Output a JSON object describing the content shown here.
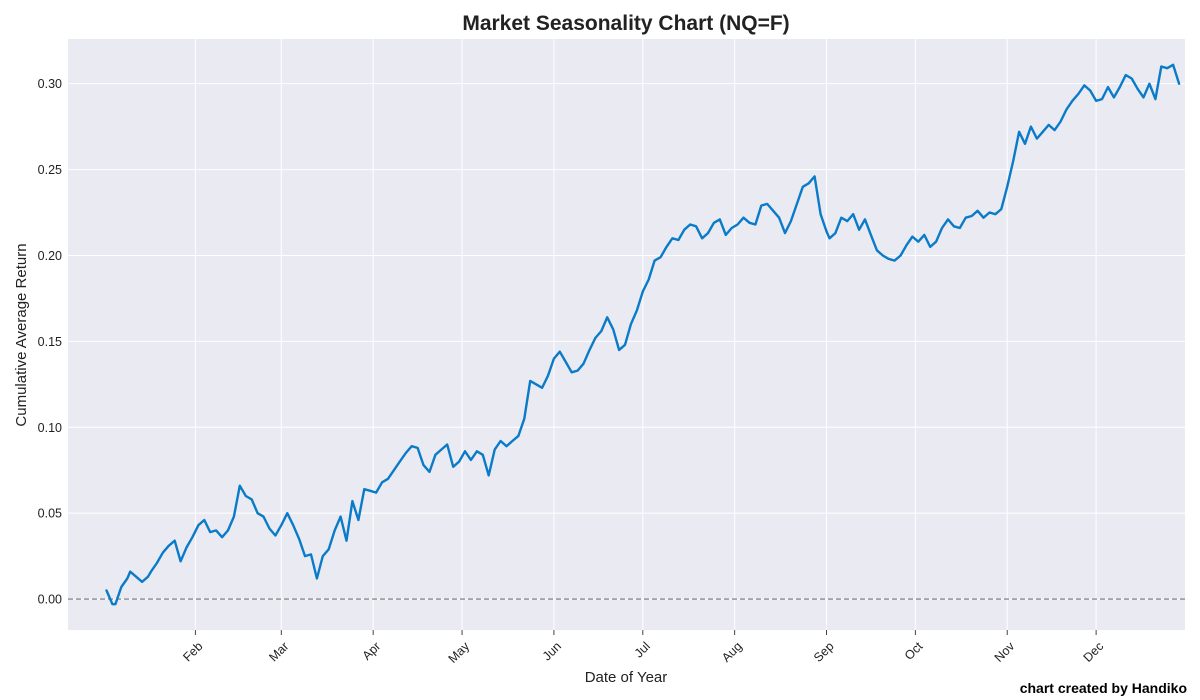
{
  "chart_data": {
    "type": "line",
    "title": "Market Seasonality Chart (NQ=F)",
    "xlabel": "Date of Year",
    "ylabel": "Cumulative Average Return",
    "credit": "chart created by Handiko",
    "ylim": [
      -0.018,
      0.326
    ],
    "yticks": [
      0.0,
      0.05,
      0.1,
      0.15,
      0.2,
      0.25,
      0.3
    ],
    "ytick_labels": [
      "0.00",
      "0.05",
      "0.10",
      "0.15",
      "0.20",
      "0.25",
      "0.30"
    ],
    "xlim": [
      "2023-12-20",
      "2024-12-31"
    ],
    "xticks": [
      "2024-02-01",
      "2024-03-01",
      "2024-04-01",
      "2024-05-01",
      "2024-06-01",
      "2024-07-01",
      "2024-08-01",
      "2024-09-01",
      "2024-10-01",
      "2024-11-01",
      "2024-12-01"
    ],
    "xtick_labels": [
      "Feb",
      "Mar",
      "Apr",
      "May",
      "Jun",
      "Jul",
      "Aug",
      "Sep",
      "Oct",
      "Nov",
      "Dec"
    ],
    "grid": true,
    "reference_line": {
      "y": 0.0,
      "style": "dashed",
      "color": "#777777"
    },
    "colors": {
      "line": "#0a7bc8",
      "plot_bg": "#eaeaf2",
      "grid": "#ffffff"
    },
    "series": [
      {
        "x": [
          "2024-01-02",
          "2024-01-03",
          "2024-01-04",
          "2024-01-05",
          "2024-01-07",
          "2024-01-09",
          "2024-01-10",
          "2024-01-12",
          "2024-01-14",
          "2024-01-16",
          "2024-01-17",
          "2024-01-19",
          "2024-01-21",
          "2024-01-23",
          "2024-01-25",
          "2024-01-27",
          "2024-01-29",
          "2024-01-31",
          "2024-02-02",
          "2024-02-04",
          "2024-02-06",
          "2024-02-08",
          "2024-02-10",
          "2024-02-12",
          "2024-02-14",
          "2024-02-16",
          "2024-02-18",
          "2024-02-20",
          "2024-02-22",
          "2024-02-24",
          "2024-02-26",
          "2024-02-28",
          "2024-03-01",
          "2024-03-03",
          "2024-03-05",
          "2024-03-07",
          "2024-03-09",
          "2024-03-11",
          "2024-03-13",
          "2024-03-15",
          "2024-03-17",
          "2024-03-19",
          "2024-03-21",
          "2024-03-23",
          "2024-03-25",
          "2024-03-27",
          "2024-03-29",
          "2024-03-31",
          "2024-04-02",
          "2024-04-04",
          "2024-04-06",
          "2024-04-08",
          "2024-04-10",
          "2024-04-12",
          "2024-04-14",
          "2024-04-16",
          "2024-04-18",
          "2024-04-20",
          "2024-04-22",
          "2024-04-24",
          "2024-04-26",
          "2024-04-28",
          "2024-04-30",
          "2024-05-02",
          "2024-05-04",
          "2024-05-06",
          "2024-05-08",
          "2024-05-10",
          "2024-05-12",
          "2024-05-14",
          "2024-05-16",
          "2024-05-18",
          "2024-05-20",
          "2024-05-22",
          "2024-05-24",
          "2024-05-26",
          "2024-05-28",
          "2024-05-30",
          "2024-06-01",
          "2024-06-03",
          "2024-06-05",
          "2024-06-07",
          "2024-06-09",
          "2024-06-11",
          "2024-06-13",
          "2024-06-15",
          "2024-06-17",
          "2024-06-19",
          "2024-06-21",
          "2024-06-23",
          "2024-06-25",
          "2024-06-27",
          "2024-06-29",
          "2024-07-01",
          "2024-07-03",
          "2024-07-05",
          "2024-07-07",
          "2024-07-09",
          "2024-07-11",
          "2024-07-13",
          "2024-07-15",
          "2024-07-17",
          "2024-07-19",
          "2024-07-21",
          "2024-07-23",
          "2024-07-25",
          "2024-07-27",
          "2024-07-29",
          "2024-07-31",
          "2024-08-02",
          "2024-08-04",
          "2024-08-06",
          "2024-08-08",
          "2024-08-10",
          "2024-08-12",
          "2024-08-14",
          "2024-08-16",
          "2024-08-18",
          "2024-08-20",
          "2024-08-22",
          "2024-08-24",
          "2024-08-26",
          "2024-08-28",
          "2024-08-30",
          "2024-09-01",
          "2024-09-02",
          "2024-09-04",
          "2024-09-06",
          "2024-09-08",
          "2024-09-10",
          "2024-09-12",
          "2024-09-14",
          "2024-09-16",
          "2024-09-18",
          "2024-09-20",
          "2024-09-22",
          "2024-09-24",
          "2024-09-26",
          "2024-09-28",
          "2024-09-30",
          "2024-10-02",
          "2024-10-04",
          "2024-10-06",
          "2024-10-08",
          "2024-10-10",
          "2024-10-12",
          "2024-10-14",
          "2024-10-16",
          "2024-10-18",
          "2024-10-20",
          "2024-10-22",
          "2024-10-24",
          "2024-10-26",
          "2024-10-28",
          "2024-10-30",
          "2024-11-01",
          "2024-11-03",
          "2024-11-05",
          "2024-11-07",
          "2024-11-09",
          "2024-11-11",
          "2024-11-13",
          "2024-11-15",
          "2024-11-17",
          "2024-11-19",
          "2024-11-21",
          "2024-11-23",
          "2024-11-25",
          "2024-11-27",
          "2024-11-29",
          "2024-12-01",
          "2024-12-03",
          "2024-12-05",
          "2024-12-07",
          "2024-12-09",
          "2024-12-11",
          "2024-12-13",
          "2024-12-15",
          "2024-12-17",
          "2024-12-19",
          "2024-12-21",
          "2024-12-23",
          "2024-12-25",
          "2024-12-27",
          "2024-12-29"
        ],
        "y": [
          0.005,
          0.001,
          -0.003,
          -0.003,
          0.007,
          0.012,
          0.016,
          0.013,
          0.01,
          0.013,
          0.016,
          0.021,
          0.027,
          0.031,
          0.034,
          0.022,
          0.03,
          0.036,
          0.043,
          0.046,
          0.039,
          0.04,
          0.036,
          0.04,
          0.048,
          0.066,
          0.06,
          0.058,
          0.05,
          0.048,
          0.041,
          0.037,
          0.043,
          0.05,
          0.043,
          0.035,
          0.025,
          0.026,
          0.012,
          0.025,
          0.029,
          0.04,
          0.048,
          0.034,
          0.057,
          0.046,
          0.064,
          0.063,
          0.062,
          0.068,
          0.07,
          0.075,
          0.08,
          0.085,
          0.089,
          0.088,
          0.078,
          0.074,
          0.084,
          0.087,
          0.09,
          0.077,
          0.08,
          0.086,
          0.081,
          0.086,
          0.084,
          0.072,
          0.087,
          0.092,
          0.089,
          0.092,
          0.095,
          0.105,
          0.127,
          0.125,
          0.123,
          0.13,
          0.14,
          0.144,
          0.138,
          0.132,
          0.133,
          0.137,
          0.145,
          0.152,
          0.156,
          0.164,
          0.157,
          0.145,
          0.148,
          0.16,
          0.168,
          0.179,
          0.186,
          0.197,
          0.199,
          0.205,
          0.21,
          0.209,
          0.215,
          0.218,
          0.217,
          0.21,
          0.213,
          0.219,
          0.221,
          0.212,
          0.216,
          0.218,
          0.222,
          0.219,
          0.218,
          0.229,
          0.23,
          0.226,
          0.222,
          0.213,
          0.22,
          0.23,
          0.24,
          0.242,
          0.246,
          0.224,
          0.214,
          0.21,
          0.213,
          0.222,
          0.22,
          0.224,
          0.215,
          0.221,
          0.212,
          0.203,
          0.2,
          0.198,
          0.197,
          0.2,
          0.206,
          0.211,
          0.208,
          0.212,
          0.205,
          0.208,
          0.216,
          0.221,
          0.217,
          0.216,
          0.222,
          0.223,
          0.226,
          0.222,
          0.225,
          0.224,
          0.227,
          0.24,
          0.255,
          0.272,
          0.265,
          0.275,
          0.268,
          0.272,
          0.276,
          0.273,
          0.278,
          0.285,
          0.29,
          0.294,
          0.299,
          0.296,
          0.29,
          0.291,
          0.298,
          0.292,
          0.298,
          0.305,
          0.303,
          0.297,
          0.292,
          0.3,
          0.291,
          0.31,
          0.309,
          0.311,
          0.3
        ]
      }
    ]
  }
}
